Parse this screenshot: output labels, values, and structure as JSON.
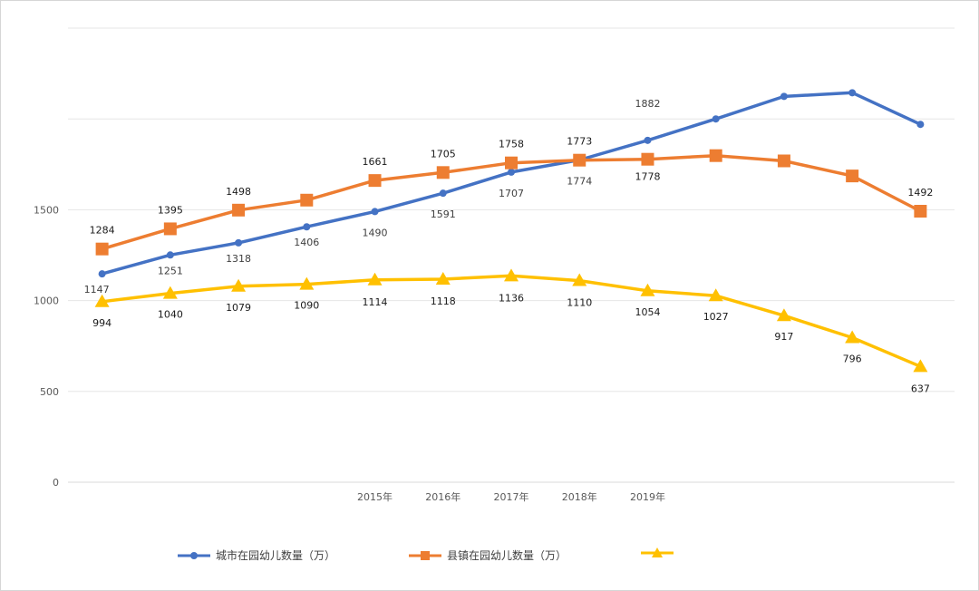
{
  "chart_data": {
    "type": "line",
    "title": "",
    "xlabel": "",
    "ylabel": "",
    "ylim": [
      0,
      2500
    ],
    "yticks": [
      0,
      500,
      1000,
      1500
    ],
    "grid": true,
    "legend_position": "bottom",
    "categories": [
      "",
      "",
      "",
      "",
      "2015年",
      "2016年",
      "2017年",
      "2018年",
      "2019年",
      "",
      "",
      "",
      ""
    ],
    "series": [
      {
        "name": "城市在园幼儿数量（万）",
        "color": "#4472C4",
        "marker": "circle",
        "values": [
          1147,
          1251,
          1318,
          1406,
          1490,
          1591,
          1707,
          1774,
          1882,
          2000,
          2124,
          2144,
          1970
        ],
        "labels": [
          "1147",
          "1251",
          "1318",
          "1406",
          "1490",
          "1591",
          "1707",
          "1774",
          "1882",
          "",
          "",
          "",
          ""
        ]
      },
      {
        "name": "县镇在园幼儿数量（万）",
        "color": "#ED7D31",
        "marker": "square",
        "values": [
          1284,
          1395,
          1498,
          1553,
          1661,
          1705,
          1758,
          1773,
          1778,
          1798,
          1769,
          1686,
          1492
        ],
        "labels": [
          "1284",
          "1395",
          "1498",
          "",
          "1661",
          "1705",
          "1758",
          "1773",
          "1778",
          "",
          "",
          "",
          "1492"
        ]
      },
      {
        "name": "",
        "color": "#FFC000",
        "marker": "triangle",
        "values": [
          994,
          1040,
          1079,
          1090,
          1114,
          1118,
          1136,
          1110,
          1054,
          1027,
          917,
          796,
          637
        ],
        "labels": [
          "994",
          "1040",
          "1079",
          "1090",
          "1114",
          "1118",
          "1136",
          "1110",
          "1054",
          "1027",
          "917",
          "796",
          "637"
        ]
      }
    ]
  }
}
